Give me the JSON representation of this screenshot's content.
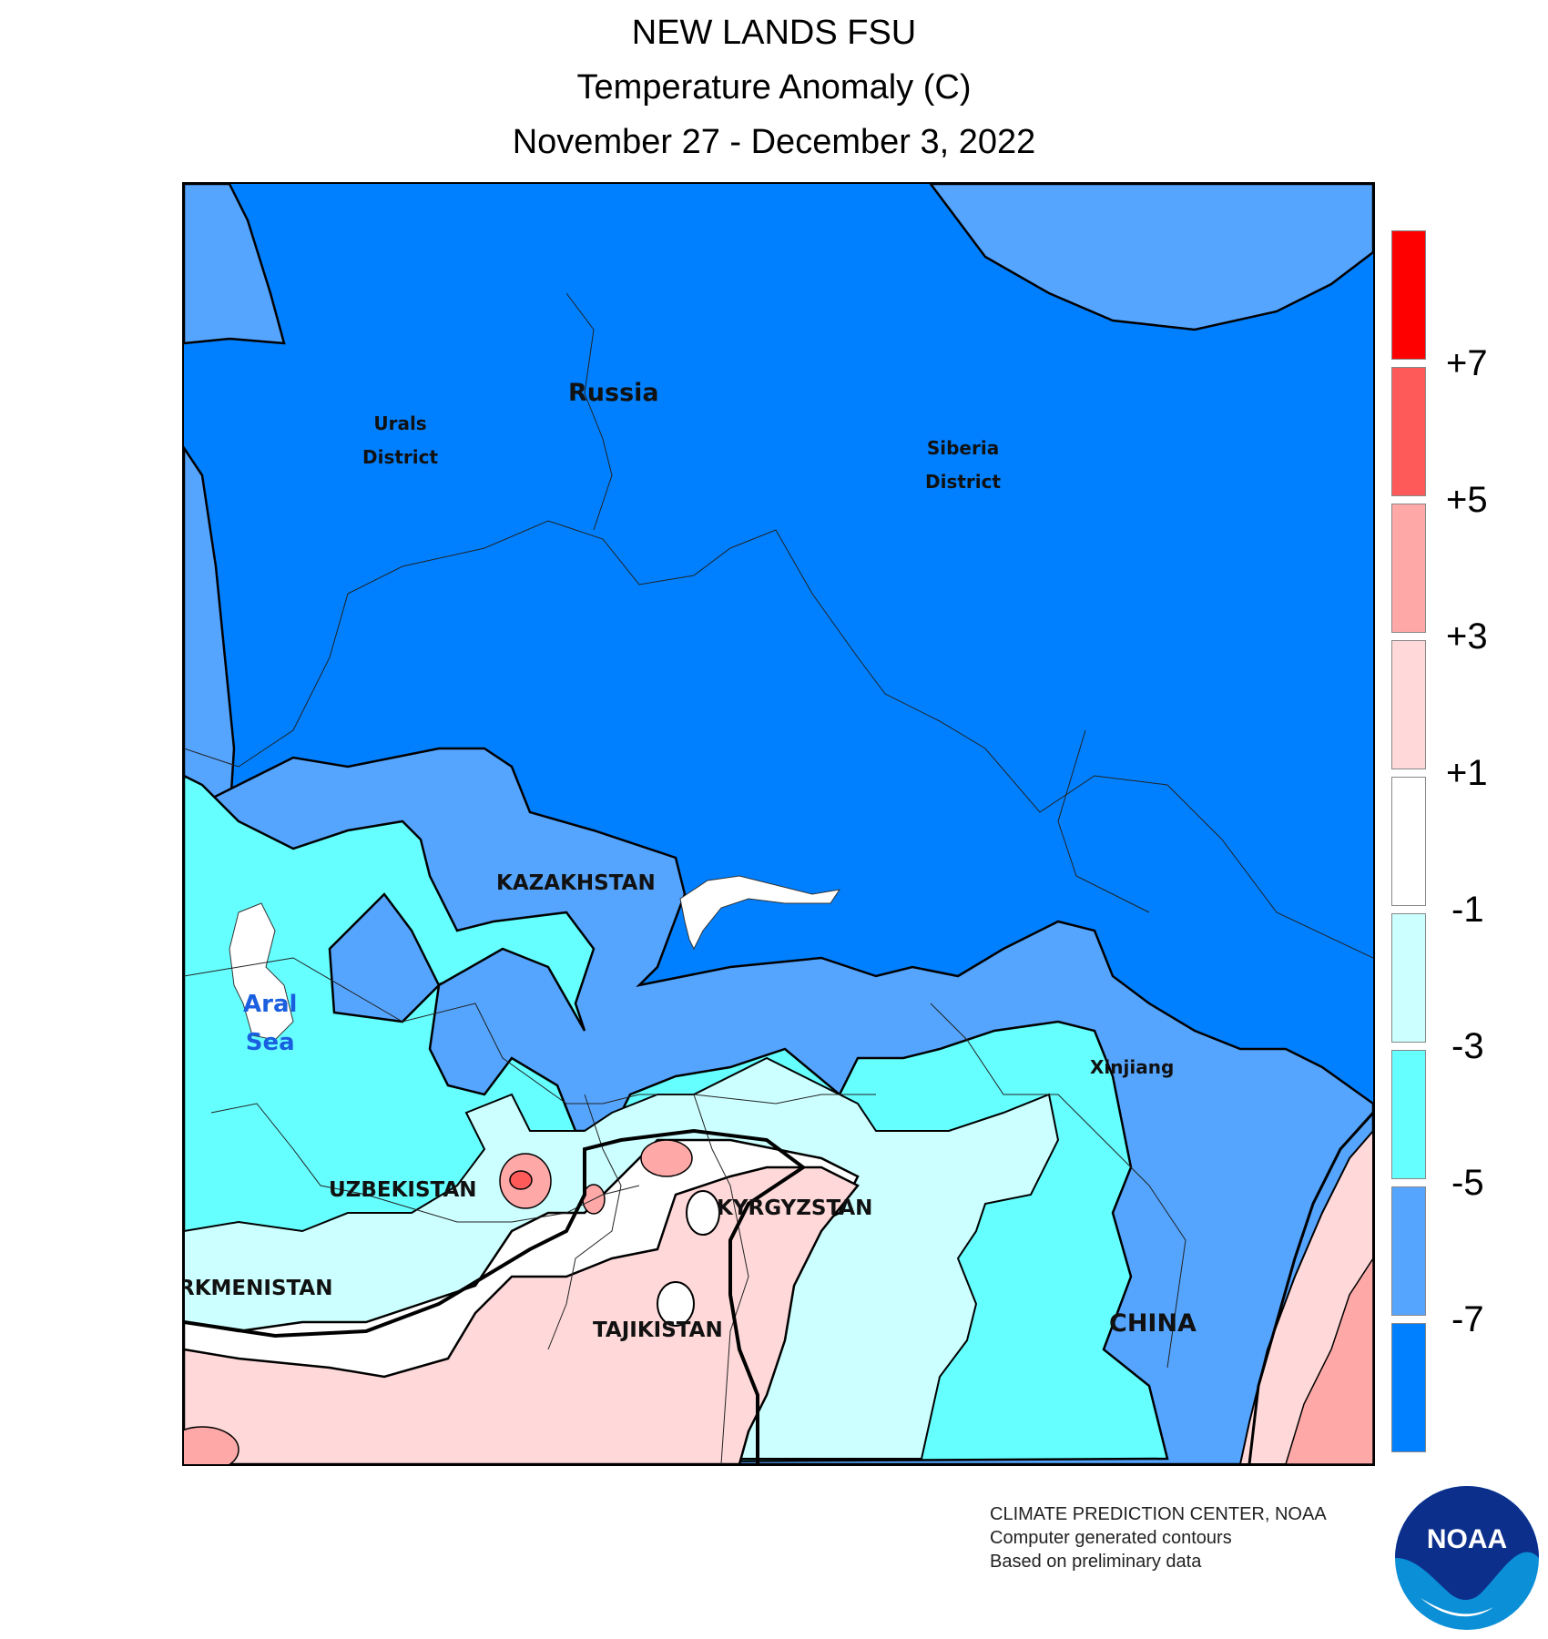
{
  "title": {
    "line1": "NEW LANDS FSU",
    "line2": "Temperature Anomaly (C)",
    "line3": "November 27 - December 3, 2022"
  },
  "map_labels": {
    "russia": "Russia",
    "urals_line1": "Urals",
    "urals_line2": "District",
    "siberia_line1": "Siberia",
    "siberia_line2": "District",
    "kazakhstan": "KAZAKHSTAN",
    "aral_line1": "Aral",
    "aral_line2": "Sea",
    "xinjiang": "Xinjiang",
    "uzbekistan": "UZBEKISTAN",
    "kyrgyzstan": "KYRGYZSTAN",
    "turkmenistan": "RKMENISTAN",
    "tajikistan": "TAJIKISTAN",
    "china": "CHINA"
  },
  "legend": {
    "ticks": [
      "+7",
      "+5",
      "+3",
      "+1",
      "-1",
      "-3",
      "-5",
      "-7"
    ],
    "colors": [
      "#ff0000",
      "#ff5a5a",
      "#ffa8a8",
      "#ffd9d9",
      "#ffffff",
      "#ccffff",
      "#66ffff",
      "#55a5ff",
      "#0080ff"
    ]
  },
  "footer": {
    "line1": "CLIMATE PREDICTION CENTER, NOAA",
    "line2": "Computer generated contours",
    "line3": "Based on preliminary data"
  },
  "logo": {
    "text": "NOAA",
    "icon": "noaa-logo-icon"
  }
}
